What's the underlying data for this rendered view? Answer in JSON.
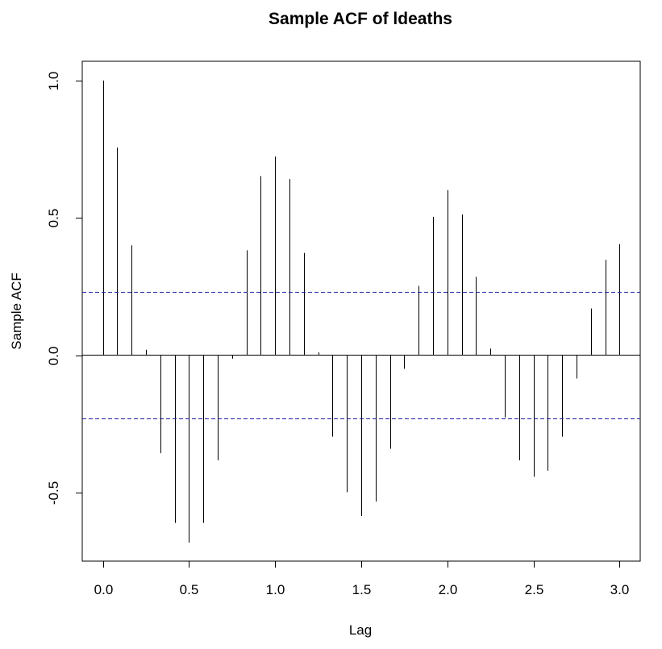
{
  "chart_data": {
    "type": "bar",
    "title": "Sample ACF of ldeaths",
    "xlabel": "Lag",
    "ylabel": "Sample ACF",
    "xlim": [
      -0.12,
      3.12
    ],
    "ylim": [
      -0.75,
      1.07
    ],
    "x_ticks": [
      0.0,
      0.5,
      1.0,
      1.5,
      2.0,
      2.5,
      3.0
    ],
    "x_tick_labels": [
      "0.0",
      "0.5",
      "1.0",
      "1.5",
      "2.0",
      "2.5",
      "3.0"
    ],
    "y_ticks": [
      -0.5,
      0.0,
      0.5,
      1.0
    ],
    "y_tick_labels": [
      "-0.5",
      "0.0",
      "0.5",
      "1.0"
    ],
    "confidence_bounds": [
      0.231,
      -0.231
    ],
    "confidence_color": "#1a1aa6",
    "bar_color": "#000000",
    "grid": false,
    "x": [
      0.0,
      0.0833,
      0.1667,
      0.25,
      0.3333,
      0.4167,
      0.5,
      0.5833,
      0.6667,
      0.75,
      0.8333,
      0.9167,
      1.0,
      1.0833,
      1.1667,
      1.25,
      1.3333,
      1.4167,
      1.5,
      1.5833,
      1.6667,
      1.75,
      1.8333,
      1.9167,
      2.0,
      2.0833,
      2.1667,
      2.25,
      2.3333,
      2.4167,
      2.5,
      2.5833,
      2.6667,
      2.75,
      2.8333,
      2.9167,
      3.0
    ],
    "values": [
      1.0,
      0.756,
      0.4,
      0.02,
      -0.357,
      -0.611,
      -0.683,
      -0.611,
      -0.383,
      -0.013,
      0.382,
      0.652,
      0.723,
      0.641,
      0.372,
      0.01,
      -0.297,
      -0.499,
      -0.586,
      -0.533,
      -0.341,
      -0.05,
      0.252,
      0.504,
      0.601,
      0.512,
      0.285,
      0.024,
      -0.227,
      -0.383,
      -0.443,
      -0.421,
      -0.297,
      -0.085,
      0.17,
      0.347,
      0.404
    ]
  }
}
